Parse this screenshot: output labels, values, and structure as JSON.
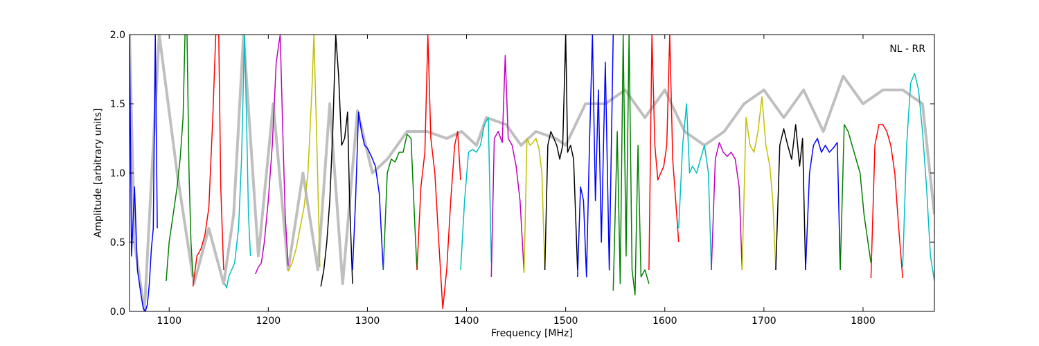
{
  "chart_data": {
    "type": "line",
    "title": "",
    "annotation": "NL - RR",
    "xlabel": "Frequency [MHz]",
    "ylabel": "Amplitude [arbitrary units]",
    "xlim": [
      1060,
      1872
    ],
    "ylim": [
      0,
      2.0
    ],
    "x_ticks": [
      1100,
      1200,
      1300,
      1400,
      1500,
      1600,
      1700,
      1800
    ],
    "x_tick_labels": [
      "1100",
      "1200",
      "1300",
      "1400",
      "1500",
      "1600",
      "1700",
      "1800"
    ],
    "y_ticks": [
      0.0,
      0.5,
      1.0,
      1.5,
      2.0
    ],
    "y_tick_labels": [
      "0.0",
      "0.5",
      "1.0",
      "1.5",
      "2.0"
    ],
    "grid": false,
    "legend": "none",
    "background_envelope": {
      "name": "envelope",
      "color": "#bfbfbf",
      "x": [
        1060,
        1065,
        1075,
        1090,
        1108,
        1125,
        1140,
        1155,
        1165,
        1175,
        1190,
        1205,
        1220,
        1235,
        1250,
        1262,
        1275,
        1290,
        1305,
        1320,
        1340,
        1360,
        1380,
        1395,
        1410,
        1420,
        1440,
        1455,
        1470,
        1490,
        1500,
        1520,
        1540,
        1560,
        1580,
        1600,
        1620,
        1640,
        1660,
        1680,
        1700,
        1720,
        1740,
        1760,
        1780,
        1800,
        1820,
        1840,
        1860,
        1872
      ],
      "y": [
        2.0,
        0.5,
        0.0,
        2.0,
        1.0,
        0.2,
        0.6,
        0.2,
        0.7,
        2.0,
        0.4,
        1.5,
        0.3,
        1.0,
        0.3,
        1.5,
        0.2,
        1.45,
        1.0,
        1.1,
        1.3,
        1.3,
        1.25,
        1.3,
        1.2,
        1.4,
        1.35,
        1.2,
        1.3,
        1.25,
        1.2,
        1.5,
        1.5,
        1.6,
        1.4,
        1.6,
        1.3,
        1.2,
        1.3,
        1.5,
        1.6,
        1.4,
        1.6,
        1.3,
        1.7,
        1.5,
        1.6,
        1.6,
        1.5,
        0.7
      ]
    },
    "series": [
      {
        "color": "#0000ff",
        "x": [
          1060,
          1062,
          1065,
          1068,
          1070,
          1072,
          1074,
          1076,
          1078,
          1080,
          1082,
          1084,
          1086,
          1088
        ],
        "y": [
          2.0,
          0.4,
          0.9,
          0.3,
          0.2,
          0.1,
          0.02,
          0.0,
          0.05,
          0.2,
          0.45,
          0.6,
          2.0,
          0.6
        ]
      },
      {
        "color": "#008000",
        "x": [
          1097,
          1100,
          1104,
          1108,
          1111,
          1114,
          1116,
          1118,
          1120,
          1122,
          1124
        ],
        "y": [
          0.22,
          0.5,
          0.7,
          0.9,
          1.1,
          1.4,
          2.0,
          2.0,
          1.0,
          0.5,
          0.25
        ]
      },
      {
        "color": "#ff0000",
        "x": [
          1124,
          1128,
          1132,
          1136,
          1140,
          1144,
          1147,
          1150,
          1152,
          1155
        ],
        "y": [
          0.18,
          0.4,
          0.45,
          0.55,
          0.75,
          1.4,
          2.0,
          2.0,
          0.9,
          0.3
        ]
      },
      {
        "color": "#00bfbf",
        "x": [
          1156,
          1158,
          1160,
          1163,
          1166,
          1170,
          1173,
          1176,
          1178,
          1180,
          1182
        ],
        "y": [
          0.2,
          0.17,
          0.25,
          0.3,
          0.35,
          0.6,
          1.1,
          2.0,
          1.4,
          0.7,
          0.4
        ]
      },
      {
        "color": "#bf00bf",
        "x": [
          1187,
          1190,
          1193,
          1196,
          1200,
          1204,
          1208,
          1212,
          1215,
          1217,
          1220
        ],
        "y": [
          0.27,
          0.32,
          0.35,
          0.5,
          0.8,
          1.2,
          1.8,
          2.0,
          1.2,
          0.7,
          0.33
        ]
      },
      {
        "color": "#bfbf00",
        "x": [
          1220,
          1224,
          1228,
          1232,
          1236,
          1240,
          1244,
          1246,
          1249,
          1252
        ],
        "y": [
          0.29,
          0.35,
          0.45,
          0.6,
          0.75,
          1.0,
          1.6,
          2.0,
          1.2,
          0.32
        ]
      },
      {
        "color": "#000000",
        "x": [
          1253,
          1256,
          1259,
          1262,
          1265,
          1268,
          1271,
          1274,
          1277,
          1280,
          1282,
          1285
        ],
        "y": [
          0.18,
          0.3,
          0.5,
          0.8,
          1.3,
          2.0,
          1.7,
          1.2,
          1.25,
          1.44,
          0.8,
          0.2
        ]
      },
      {
        "color": "#0000ff",
        "x": [
          1285,
          1288,
          1291,
          1294,
          1297,
          1300,
          1304,
          1308,
          1312,
          1316
        ],
        "y": [
          0.3,
          0.8,
          1.44,
          1.3,
          1.2,
          1.18,
          1.12,
          1.05,
          0.85,
          0.3
        ]
      },
      {
        "color": "#008000",
        "x": [
          1316,
          1320,
          1324,
          1328,
          1332,
          1336,
          1340,
          1344,
          1348,
          1350
        ],
        "y": [
          0.3,
          1.0,
          1.1,
          1.08,
          1.15,
          1.15,
          1.28,
          1.25,
          0.6,
          0.3
        ]
      },
      {
        "color": "#ff0000",
        "x": [
          1350,
          1354,
          1358,
          1361,
          1364,
          1368,
          1372,
          1376,
          1380,
          1384,
          1388,
          1391,
          1394
        ],
        "y": [
          0.3,
          0.9,
          1.15,
          2.0,
          1.25,
          1.0,
          0.5,
          0.02,
          0.3,
          0.8,
          1.2,
          1.3,
          0.95
        ]
      },
      {
        "color": "#00bfbf",
        "x": [
          1394,
          1398,
          1402,
          1406,
          1410,
          1414,
          1418,
          1422,
          1425
        ],
        "y": [
          0.3,
          0.8,
          1.15,
          1.17,
          1.15,
          1.2,
          1.35,
          1.4,
          0.35
        ]
      },
      {
        "color": "#bf00bf",
        "x": [
          1425,
          1428,
          1432,
          1436,
          1439,
          1442,
          1446,
          1450,
          1454,
          1458
        ],
        "y": [
          0.25,
          1.25,
          1.3,
          1.22,
          1.85,
          1.25,
          1.2,
          1.05,
          0.8,
          0.28
        ]
      },
      {
        "color": "#bfbf00",
        "x": [
          1458,
          1461,
          1464,
          1467,
          1470,
          1473,
          1476,
          1479
        ],
        "y": [
          0.28,
          1.25,
          1.2,
          1.22,
          1.25,
          1.18,
          1.0,
          0.3
        ]
      },
      {
        "color": "#000000",
        "x": [
          1479,
          1482,
          1485,
          1488,
          1491,
          1494,
          1497,
          1500,
          1502,
          1505,
          1508,
          1512
        ],
        "y": [
          0.3,
          1.2,
          1.3,
          1.25,
          1.2,
          1.1,
          1.2,
          2.0,
          1.15,
          1.2,
          1.1,
          0.3
        ]
      },
      {
        "color": "#0000ff",
        "x": [
          1512,
          1515,
          1518,
          1521,
          1524,
          1527,
          1530,
          1533,
          1536,
          1540,
          1544,
          1548
        ],
        "y": [
          0.25,
          0.9,
          0.8,
          0.25,
          1.2,
          2.0,
          0.8,
          1.6,
          0.5,
          1.8,
          0.3,
          2.0
        ]
      },
      {
        "color": "#008000",
        "x": [
          1548,
          1552,
          1555,
          1558,
          1561,
          1564,
          1567,
          1570,
          1573,
          1576,
          1580,
          1584
        ],
        "y": [
          0.15,
          1.3,
          0.2,
          2.0,
          0.4,
          2.0,
          0.3,
          0.12,
          1.2,
          0.25,
          0.3,
          0.2
        ]
      },
      {
        "color": "#ff0000",
        "x": [
          1584,
          1587,
          1590,
          1593,
          1596,
          1599,
          1602,
          1605,
          1608,
          1611,
          1614
        ],
        "y": [
          0.3,
          2.0,
          1.2,
          0.95,
          1.0,
          1.05,
          1.2,
          2.0,
          1.1,
          0.8,
          0.5
        ]
      },
      {
        "color": "#00bfbf",
        "x": [
          1614,
          1618,
          1622,
          1625,
          1628,
          1632,
          1636,
          1640,
          1644,
          1647
        ],
        "y": [
          0.6,
          1.2,
          1.5,
          1.0,
          1.05,
          1.0,
          1.1,
          1.2,
          1.0,
          0.3
        ]
      },
      {
        "color": "#bf00bf",
        "x": [
          1647,
          1651,
          1655,
          1659,
          1663,
          1667,
          1671,
          1675,
          1678
        ],
        "y": [
          0.3,
          1.1,
          1.22,
          1.15,
          1.12,
          1.15,
          1.1,
          0.9,
          0.3
        ]
      },
      {
        "color": "#bfbf00",
        "x": [
          1678,
          1682,
          1686,
          1690,
          1694,
          1698,
          1702,
          1706,
          1709,
          1712
        ],
        "y": [
          0.3,
          1.4,
          1.2,
          1.15,
          1.3,
          1.55,
          1.2,
          1.05,
          0.8,
          0.3
        ]
      },
      {
        "color": "#000000",
        "x": [
          1712,
          1716,
          1720,
          1724,
          1728,
          1732,
          1736,
          1739,
          1742
        ],
        "y": [
          0.3,
          1.2,
          1.32,
          1.2,
          1.1,
          1.35,
          1.05,
          1.25,
          0.3
        ]
      },
      {
        "color": "#0000ff",
        "x": [
          1742,
          1746,
          1750,
          1754,
          1758,
          1762,
          1766,
          1770,
          1774,
          1777
        ],
        "y": [
          0.3,
          1.0,
          1.2,
          1.25,
          1.15,
          1.2,
          1.15,
          1.18,
          1.22,
          0.3
        ]
      },
      {
        "color": "#008000",
        "x": [
          1777,
          1781,
          1785,
          1789,
          1793,
          1797,
          1801,
          1805,
          1808
        ],
        "y": [
          0.3,
          1.35,
          1.3,
          1.2,
          1.1,
          1.0,
          0.7,
          0.5,
          0.35
        ]
      },
      {
        "color": "#ff0000",
        "x": [
          1808,
          1812,
          1816,
          1820,
          1824,
          1828,
          1832,
          1836,
          1840
        ],
        "y": [
          0.24,
          1.2,
          1.35,
          1.35,
          1.3,
          1.2,
          1.0,
          0.6,
          0.24
        ]
      },
      {
        "color": "#00bfbf",
        "x": [
          1840,
          1844,
          1848,
          1852,
          1856,
          1860,
          1864,
          1868,
          1872
        ],
        "y": [
          0.32,
          1.2,
          1.65,
          1.72,
          1.6,
          1.3,
          0.9,
          0.4,
          0.22
        ]
      }
    ]
  }
}
